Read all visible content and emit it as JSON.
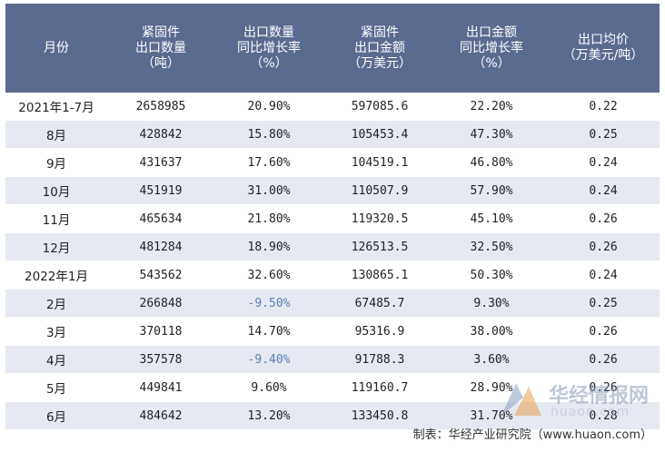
{
  "headers": [
    [
      "月份"
    ],
    [
      "紧固件",
      "出口数量",
      "（吨）"
    ],
    [
      "出口数量",
      "同比增长率",
      "（%）"
    ],
    [
      "紧固件",
      "出口金额",
      "（万美元）"
    ],
    [
      "出口金额",
      "同比增长率",
      "（%）"
    ],
    [
      "出口均价",
      "（万美元/吨）"
    ]
  ],
  "rows": [
    {
      "month": "2021年1-7月",
      "qty": "2658985",
      "qty_yoy": "20.90%",
      "amount": "597085.6",
      "amt_yoy": "22.20%",
      "price": "0.22"
    },
    {
      "month": "8月",
      "qty": "428842",
      "qty_yoy": "15.80%",
      "amount": "105453.4",
      "amt_yoy": "47.30%",
      "price": "0.25"
    },
    {
      "month": "9月",
      "qty": "431637",
      "qty_yoy": "17.60%",
      "amount": "104519.1",
      "amt_yoy": "46.80%",
      "price": "0.24"
    },
    {
      "month": "10月",
      "qty": "451919",
      "qty_yoy": "31.00%",
      "amount": "110507.9",
      "amt_yoy": "57.90%",
      "price": "0.24"
    },
    {
      "month": "11月",
      "qty": "465634",
      "qty_yoy": "21.80%",
      "amount": "119320.5",
      "amt_yoy": "45.10%",
      "price": "0.26"
    },
    {
      "month": "12月",
      "qty": "481284",
      "qty_yoy": "18.90%",
      "amount": "126513.5",
      "amt_yoy": "32.50%",
      "price": "0.26"
    },
    {
      "month": "2022年1月",
      "qty": "543562",
      "qty_yoy": "32.60%",
      "amount": "130865.1",
      "amt_yoy": "50.30%",
      "price": "0.24"
    },
    {
      "month": "2月",
      "qty": "266848",
      "qty_yoy": "-9.50%",
      "amount": "67485.7",
      "amt_yoy": "9.30%",
      "price": "0.25"
    },
    {
      "month": "3月",
      "qty": "370118",
      "qty_yoy": "14.70%",
      "amount": "95316.9",
      "amt_yoy": "38.00%",
      "price": "0.26"
    },
    {
      "month": "4月",
      "qty": "357578",
      "qty_yoy": "-9.40%",
      "amount": "91788.3",
      "amt_yoy": "3.60%",
      "price": "0.26"
    },
    {
      "month": "5月",
      "qty": "449841",
      "qty_yoy": "9.60%",
      "amount": "119160.7",
      "amt_yoy": "28.90%",
      "price": "0.26"
    },
    {
      "month": "6月",
      "qty": "484642",
      "qty_yoy": "13.20%",
      "amount": "133450.8",
      "amt_yoy": "31.70%",
      "price": "0.28"
    }
  ],
  "footer": "制表：华经产业研究院（www.huaon.com）",
  "watermark": {
    "text": "华经情报网",
    "url": "huaon.com"
  },
  "colors": {
    "header_bg": "#5b6a8f",
    "stripe": "#e6e9f2",
    "negative": "#5a7fb5"
  }
}
